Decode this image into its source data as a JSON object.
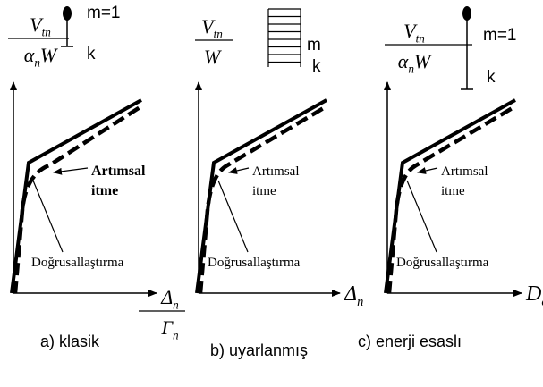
{
  "panels": [
    {
      "y_label": {
        "numerator": {
          "base": "V",
          "sub": "tn"
        },
        "denominator": {
          "base": "α",
          "sub": "n",
          "tail": "W"
        }
      },
      "icon": {
        "mass": "m=1",
        "spring": "k"
      },
      "annotation_1": [
        "Artımsal",
        "itme"
      ],
      "annotation_2": "Doğrusallaştırma",
      "x_label": {
        "numerator": {
          "base": "Δ",
          "sub": "n"
        },
        "denominator": {
          "base": "Γ",
          "sub": "n"
        }
      },
      "caption": "a) klasik"
    },
    {
      "y_label": {
        "numerator": {
          "base": "V",
          "sub": "tn"
        },
        "denominator": {
          "base": "W"
        }
      },
      "icon": {
        "mass": "m",
        "spring": "k"
      },
      "annotation_1": [
        "Artımsal",
        "itme"
      ],
      "annotation_2": "Doğrusallaştırma",
      "x_label": {
        "base": "Δ",
        "sub": "n"
      },
      "caption": "b) uyarlanmış"
    },
    {
      "y_label": {
        "numerator": {
          "base": "V",
          "sub": "tn"
        },
        "denominator": {
          "base": "α",
          "sub": "n",
          "tail": "W"
        }
      },
      "icon": {
        "mass": "m=1",
        "spring": "k"
      },
      "annotation_1": [
        "Artımsal",
        "itme"
      ],
      "annotation_2": "Doğrusallaştırma",
      "x_label": {
        "base": "D",
        "sub": "en"
      },
      "caption": "c) enerji esaslı"
    }
  ]
}
